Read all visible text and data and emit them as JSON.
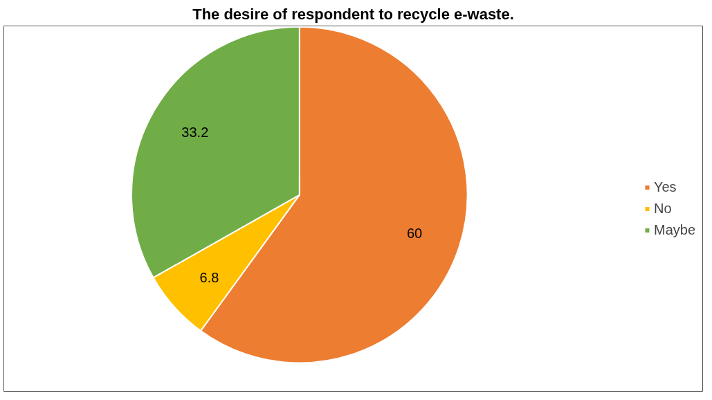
{
  "chart_data": {
    "type": "pie",
    "title": "The desire of respondent to recycle e-waste.",
    "categories": [
      "Yes",
      "No",
      "Maybe"
    ],
    "values": [
      60,
      6.8,
      33.2
    ],
    "colors": [
      "#ed7d31",
      "#ffc000",
      "#70ad47"
    ],
    "data_labels": true,
    "legend": "right"
  }
}
